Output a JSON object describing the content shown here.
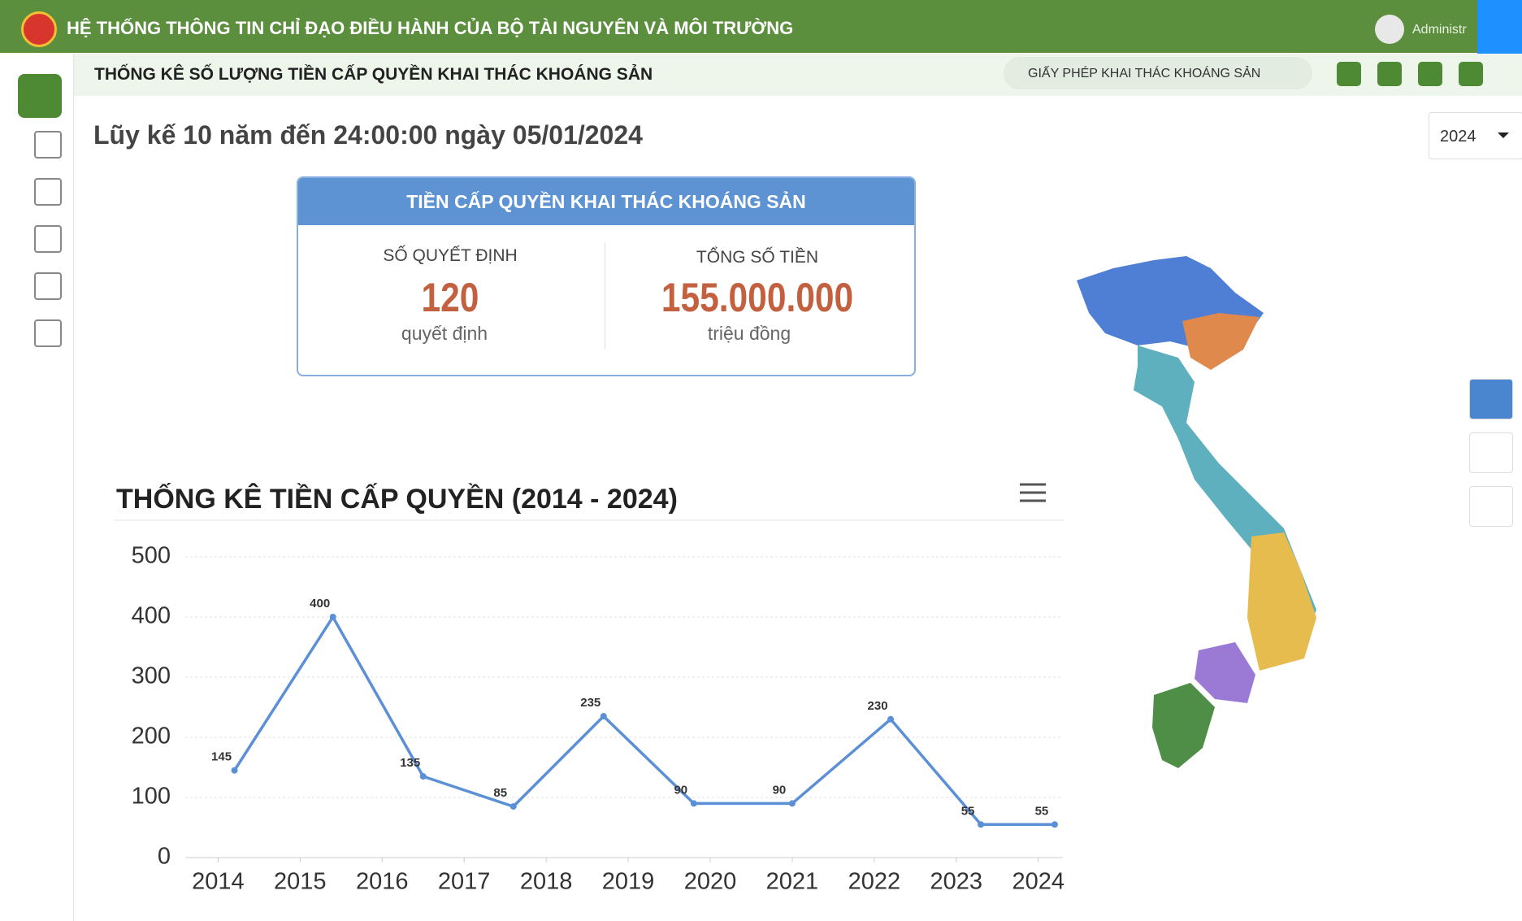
{
  "header": {
    "title": "HỆ THỐNG THÔNG TIN CHỈ ĐẠO ĐIỀU HÀNH CỦA BỘ TÀI NGUYÊN VÀ MÔI TRƯỜNG",
    "user": "Administr"
  },
  "subheader": {
    "title": "THỐNG KÊ SỐ LƯỢNG TIỀN CẤP QUYỀN KHAI THÁC KHOÁNG SẢN",
    "filter": "GIẤY  PHÉP KHAI THÁC KHOÁNG SẢN"
  },
  "heading": "Lũy kế 10 năm đến 24:00:00 ngày 05/01/2024",
  "year_select": "2024",
  "card": {
    "title": "TIỀN CẤP QUYỀN KHAI THÁC KHOÁNG SẢN",
    "left": {
      "label": "SỐ QUYẾT ĐỊNH",
      "value": "120",
      "unit": "quyết định"
    },
    "right": {
      "label": "TỔNG SỐ TIỀN",
      "value": "155.000.000",
      "unit": "triệu đồng"
    }
  },
  "chart_data": {
    "type": "line",
    "title": "THỐNG KÊ TIỀN CẤP QUYỀN  (2014 - 2024)",
    "x": [
      2014.2,
      2015.4,
      2016.5,
      2017.6,
      2018.7,
      2019.8,
      2021.0,
      2022.2,
      2023.3,
      2024.2
    ],
    "values": [
      145,
      400,
      135,
      85,
      235,
      90,
      90,
      230,
      55,
      55
    ],
    "color": "#5b8fd6",
    "xlim": [
      2013.6,
      2024.3
    ],
    "xticks": [
      2014,
      2015,
      2016,
      2017,
      2018,
      2019,
      2020,
      2021,
      2022,
      2023,
      2024
    ],
    "ylim": [
      0,
      500
    ],
    "yticks": [
      0,
      100,
      200,
      300,
      400,
      500
    ],
    "grid": true
  }
}
